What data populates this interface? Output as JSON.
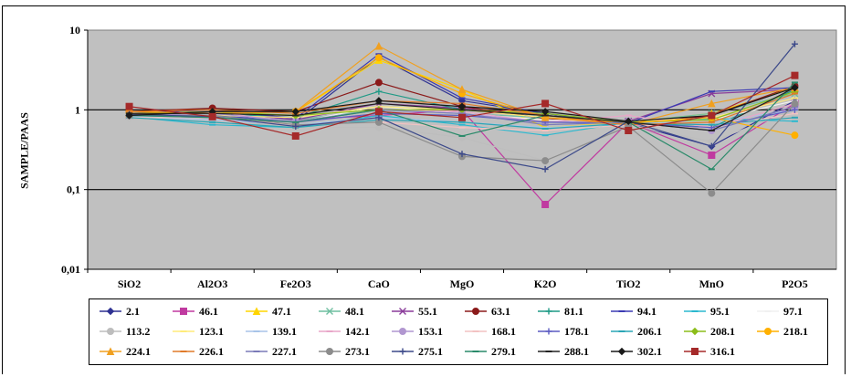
{
  "chart_data": {
    "type": "line",
    "ylabel": "SAMPLE/PAAS",
    "yscale": "log",
    "ylim": [
      0.01,
      10
    ],
    "ytick_labels": [
      "0,01",
      "0,1",
      "1",
      "10"
    ],
    "categories": [
      "SiO2",
      "Al2O3",
      "Fe2O3",
      "CaO",
      "MgO",
      "K2O",
      "TiO2",
      "MnO",
      "P2O5"
    ],
    "grid": "major y lines at 0.1 and 1",
    "legend_position": "bottom",
    "series": [
      {
        "name": "2.1",
        "color": "#2e3192",
        "marker": "diamond",
        "values": [
          0.85,
          0.85,
          0.72,
          4.6,
          1.3,
          0.9,
          0.68,
          0.35,
          1.3
        ]
      },
      {
        "name": "46.1",
        "color": "#c03aa0",
        "marker": "square",
        "values": [
          0.85,
          0.95,
          0.75,
          0.85,
          1.0,
          0.065,
          0.7,
          0.27,
          1.2
        ]
      },
      {
        "name": "47.1",
        "color": "#ffd500",
        "marker": "triangle",
        "values": [
          0.9,
          0.9,
          0.95,
          4.2,
          1.8,
          0.6,
          0.7,
          0.9,
          1.9
        ]
      },
      {
        "name": "48.1",
        "color": "#6fbfa0",
        "marker": "x",
        "values": [
          0.85,
          0.8,
          0.75,
          1.0,
          0.9,
          0.8,
          0.7,
          0.9,
          1.6
        ]
      },
      {
        "name": "55.1",
        "color": "#8a3c9a",
        "marker": "x",
        "values": [
          0.9,
          0.95,
          0.75,
          1.2,
          1.05,
          0.85,
          0.72,
          1.6,
          1.8
        ]
      },
      {
        "name": "63.1",
        "color": "#8b1a1a",
        "marker": "circle",
        "values": [
          0.95,
          1.05,
          0.95,
          2.2,
          1.1,
          0.78,
          0.65,
          0.85,
          2.0
        ]
      },
      {
        "name": "81.1",
        "color": "#1f9a86",
        "marker": "plus",
        "values": [
          0.88,
          0.9,
          0.8,
          1.7,
          1.0,
          0.85,
          0.7,
          0.6,
          1.8
        ]
      },
      {
        "name": "94.1",
        "color": "#3b3bb3",
        "marker": "dash",
        "values": [
          0.9,
          1.0,
          0.78,
          5.0,
          1.4,
          0.9,
          0.68,
          1.7,
          1.9
        ]
      },
      {
        "name": "95.1",
        "color": "#2bb8cf",
        "marker": "dash",
        "values": [
          0.82,
          0.65,
          0.6,
          0.85,
          0.65,
          0.48,
          0.7,
          0.78,
          0.72
        ]
      },
      {
        "name": "97.1",
        "color": "#f0f0f0",
        "marker": "dash",
        "values": [
          0.85,
          0.8,
          0.7,
          1.1,
          0.9,
          0.75,
          0.7,
          0.75,
          1.3
        ]
      },
      {
        "name": "113.2",
        "color": "#bdbdbd",
        "marker": "circle",
        "values": [
          0.8,
          0.75,
          0.6,
          0.6,
          0.45,
          0.23,
          0.65,
          0.4,
          1.0
        ]
      },
      {
        "name": "123.1",
        "color": "#ffeb7a",
        "marker": "dash",
        "values": [
          0.85,
          0.85,
          0.8,
          1.1,
          1.0,
          0.8,
          0.7,
          0.8,
          1.4
        ]
      },
      {
        "name": "139.1",
        "color": "#a8c4e8",
        "marker": "dash",
        "values": [
          0.82,
          0.75,
          0.65,
          0.8,
          0.7,
          0.6,
          0.68,
          0.7,
          1.0
        ]
      },
      {
        "name": "142.1",
        "color": "#e8a6c8",
        "marker": "dash",
        "values": [
          0.9,
          0.95,
          0.7,
          1.0,
          0.95,
          0.7,
          0.85,
          0.6,
          1.2
        ]
      },
      {
        "name": "153.1",
        "color": "#b197d0",
        "marker": "circle",
        "values": [
          0.85,
          0.9,
          0.72,
          1.0,
          0.9,
          0.7,
          0.72,
          0.55,
          1.1
        ]
      },
      {
        "name": "168.1",
        "color": "#f2c2c2",
        "marker": "dash",
        "values": [
          0.8,
          0.8,
          0.65,
          0.7,
          0.6,
          0.55,
          0.65,
          0.6,
          0.9
        ]
      },
      {
        "name": "178.1",
        "color": "#5c5cc2",
        "marker": "plus",
        "values": [
          0.85,
          0.85,
          0.7,
          0.9,
          0.85,
          0.7,
          0.68,
          0.6,
          1.0
        ]
      },
      {
        "name": "206.1",
        "color": "#2aa5b5",
        "marker": "dash",
        "values": [
          0.8,
          0.7,
          0.6,
          0.75,
          0.7,
          0.58,
          0.68,
          0.65,
          0.8
        ]
      },
      {
        "name": "208.1",
        "color": "#8cbd1a",
        "marker": "diamond",
        "values": [
          0.9,
          0.95,
          0.85,
          1.0,
          1.0,
          0.9,
          0.7,
          0.75,
          1.7
        ]
      },
      {
        "name": "218.1",
        "color": "#ffb000",
        "marker": "circle",
        "values": [
          0.95,
          0.9,
          0.95,
          4.5,
          1.6,
          0.8,
          0.68,
          0.8,
          0.48
        ]
      },
      {
        "name": "224.1",
        "color": "#f0a020",
        "marker": "triangle",
        "values": [
          0.9,
          0.9,
          0.95,
          6.3,
          1.8,
          0.8,
          0.65,
          1.2,
          1.9
        ]
      },
      {
        "name": "226.1",
        "color": "#e07a2a",
        "marker": "dash",
        "values": [
          0.95,
          1.0,
          0.9,
          1.3,
          1.2,
          0.85,
          0.65,
          0.7,
          1.6
        ]
      },
      {
        "name": "227.1",
        "color": "#7a7ab8",
        "marker": "dash",
        "values": [
          0.85,
          0.8,
          0.7,
          1.0,
          0.9,
          0.65,
          0.7,
          0.55,
          1.1
        ]
      },
      {
        "name": "273.1",
        "color": "#8c8c8c",
        "marker": "circle",
        "values": [
          0.85,
          0.85,
          0.65,
          0.7,
          0.26,
          0.23,
          0.62,
          0.09,
          1.2
        ]
      },
      {
        "name": "275.1",
        "color": "#3d4a8a",
        "marker": "plus",
        "values": [
          0.88,
          0.82,
          0.62,
          0.8,
          0.28,
          0.18,
          0.72,
          0.35,
          6.7
        ]
      },
      {
        "name": "279.1",
        "color": "#2a8a6a",
        "marker": "dash",
        "values": [
          0.85,
          0.8,
          0.7,
          1.0,
          0.47,
          0.85,
          0.7,
          0.18,
          2.2
        ]
      },
      {
        "name": "288.1",
        "color": "#222222",
        "marker": "dash",
        "values": [
          0.9,
          0.9,
          0.85,
          1.2,
          1.0,
          0.85,
          0.7,
          0.55,
          1.9
        ]
      },
      {
        "name": "302.1",
        "color": "#1a1a1a",
        "marker": "diamond",
        "values": [
          0.85,
          0.95,
          0.95,
          1.3,
          1.1,
          0.95,
          0.72,
          0.85,
          1.9
        ]
      },
      {
        "name": "316.1",
        "color": "#a52a2a",
        "marker": "square",
        "values": [
          1.1,
          0.82,
          0.47,
          0.95,
          0.8,
          1.2,
          0.55,
          0.85,
          2.7
        ]
      }
    ]
  }
}
